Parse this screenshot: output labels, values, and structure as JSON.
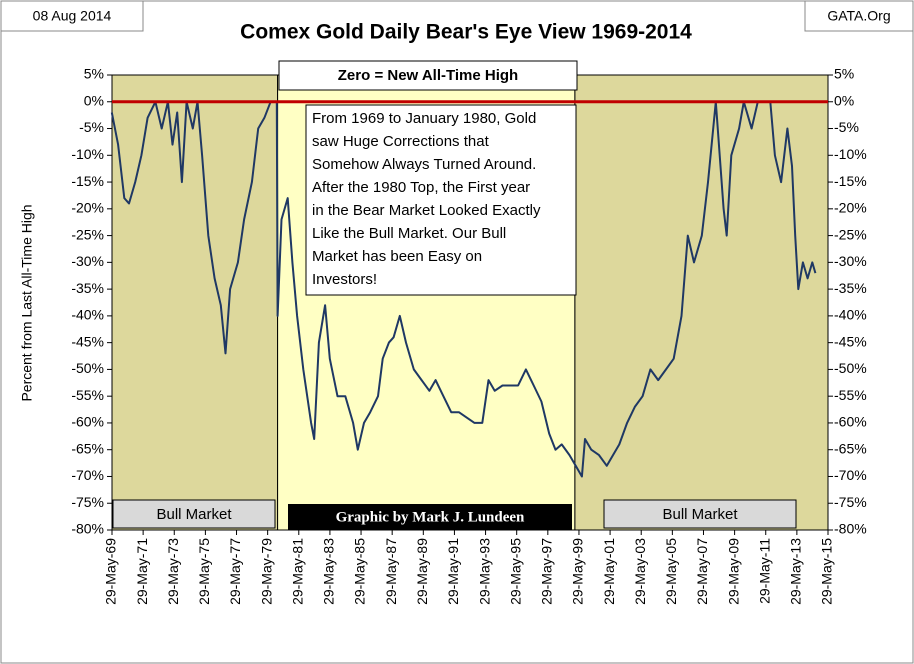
{
  "chart_data": {
    "type": "line",
    "title": "Comex Gold Daily Bear's Eye View 1969-2014",
    "date_label": "08 Aug 2014",
    "source_label": "GATA.Org",
    "ylabel": "Percent  from Last All-Time High",
    "zero_note": "Zero = New All-Time High",
    "credit": "Graphic by Mark J. Lundeen",
    "note_lines": [
      "From 1969 to January 1980, Gold",
      "saw Huge Corrections that",
      "Somehow Always Turned Around.",
      "After the 1980 Top, the First year",
      "in the Bear Market Looked Exactly",
      "Like the Bull Market.  Our Bull",
      "Market has been Easy on",
      "Investors!"
    ],
    "spans": [
      {
        "start": 1969.41,
        "end": 1980.05,
        "color": "#ddd89c",
        "label": "Bull Market"
      },
      {
        "start": 1980.05,
        "end": 1999.15,
        "color": "#ffffc4"
      },
      {
        "start": 1999.15,
        "end": 2015.41,
        "color": "#ddd89c",
        "label": "Bull Market"
      }
    ],
    "reference_line": {
      "value": 0,
      "color": "#c00000"
    },
    "xlim": [
      1969.41,
      2015.41
    ],
    "xticks": [
      {
        "value": 1969.41,
        "label": "29-May-69"
      },
      {
        "value": 1971.41,
        "label": "29-May-71"
      },
      {
        "value": 1973.41,
        "label": "29-May-73"
      },
      {
        "value": 1975.41,
        "label": "29-May-75"
      },
      {
        "value": 1977.41,
        "label": "29-May-77"
      },
      {
        "value": 1979.41,
        "label": "29-May-79"
      },
      {
        "value": 1981.41,
        "label": "29-May-81"
      },
      {
        "value": 1983.41,
        "label": "29-May-83"
      },
      {
        "value": 1985.41,
        "label": "29-May-85"
      },
      {
        "value": 1987.41,
        "label": "29-May-87"
      },
      {
        "value": 1989.41,
        "label": "29-May-89"
      },
      {
        "value": 1991.41,
        "label": "29-May-91"
      },
      {
        "value": 1993.41,
        "label": "29-May-93"
      },
      {
        "value": 1995.41,
        "label": "29-May-95"
      },
      {
        "value": 1997.41,
        "label": "29-May-97"
      },
      {
        "value": 1999.41,
        "label": "29-May-99"
      },
      {
        "value": 2001.41,
        "label": "29-May-01"
      },
      {
        "value": 2003.41,
        "label": "29-May-03"
      },
      {
        "value": 2005.41,
        "label": "29-May-05"
      },
      {
        "value": 2007.41,
        "label": "29-May-07"
      },
      {
        "value": 2009.41,
        "label": "29-May-09"
      },
      {
        "value": 2011.41,
        "label": "29-May-11"
      },
      {
        "value": 2013.41,
        "label": "29-May-13"
      },
      {
        "value": 2015.41,
        "label": "29-May-15"
      }
    ],
    "ylim": [
      -80,
      5
    ],
    "yticks": [
      {
        "value": 5,
        "label": "5%"
      },
      {
        "value": 0,
        "label": "0%"
      },
      {
        "value": -5,
        "label": "-5%"
      },
      {
        "value": -10,
        "label": "-10%"
      },
      {
        "value": -15,
        "label": "-15%"
      },
      {
        "value": -20,
        "label": "-20%"
      },
      {
        "value": -25,
        "label": "-25%"
      },
      {
        "value": -30,
        "label": "-30%"
      },
      {
        "value": -35,
        "label": "-35%"
      },
      {
        "value": -40,
        "label": "-40%"
      },
      {
        "value": -45,
        "label": "-45%"
      },
      {
        "value": -50,
        "label": "-50%"
      },
      {
        "value": -55,
        "label": "-55%"
      },
      {
        "value": -60,
        "label": "-60%"
      },
      {
        "value": -65,
        "label": "-65%"
      },
      {
        "value": -70,
        "label": "-70%"
      },
      {
        "value": -75,
        "label": "-75%"
      },
      {
        "value": -80,
        "label": "-80%"
      }
    ],
    "series": [
      {
        "name": "Bear's Eye View",
        "color": "#1f3864",
        "x": [
          1969.4,
          1969.8,
          1970.2,
          1970.5,
          1970.9,
          1971.3,
          1971.7,
          1972.2,
          1972.6,
          1973.0,
          1973.3,
          1973.6,
          1973.9,
          1974.2,
          1974.6,
          1974.9,
          1975.2,
          1975.6,
          1976.0,
          1976.4,
          1976.7,
          1977.0,
          1977.5,
          1977.9,
          1978.4,
          1978.8,
          1979.2,
          1979.6,
          1980.0,
          1980.05,
          1980.3,
          1980.7,
          1981.0,
          1981.3,
          1981.7,
          1982.2,
          1982.4,
          1982.7,
          1983.1,
          1983.4,
          1983.9,
          1984.4,
          1984.9,
          1985.2,
          1985.6,
          1986.0,
          1986.5,
          1986.8,
          1987.2,
          1987.5,
          1987.9,
          1988.3,
          1988.8,
          1989.3,
          1989.8,
          1990.2,
          1990.7,
          1991.2,
          1991.7,
          1992.2,
          1992.7,
          1993.2,
          1993.6,
          1994.0,
          1994.5,
          1995.0,
          1995.5,
          1996.0,
          1996.5,
          1997.0,
          1997.5,
          1997.9,
          1998.3,
          1998.8,
          1999.2,
          1999.6,
          1999.8,
          2000.2,
          2000.7,
          2001.2,
          2001.6,
          2002.0,
          2002.5,
          2003.0,
          2003.5,
          2004.0,
          2004.5,
          2005.0,
          2005.5,
          2006.0,
          2006.4,
          2006.8,
          2007.3,
          2007.7,
          2008.2,
          2008.7,
          2008.9,
          2009.2,
          2009.7,
          2010.0,
          2010.5,
          2010.9,
          2011.3,
          2011.7,
          2012.0,
          2012.4,
          2012.8,
          2013.1,
          2013.3,
          2013.5,
          2013.8,
          2014.1,
          2014.4,
          2014.6
        ],
        "values": [
          -2,
          -8,
          -18,
          -19,
          -15,
          -10,
          -3,
          0,
          -5,
          0,
          -8,
          -2,
          -15,
          0,
          -5,
          0,
          -10,
          -25,
          -33,
          -38,
          -47,
          -35,
          -30,
          -22,
          -15,
          -5,
          -3,
          0,
          0,
          -40,
          -22,
          -18,
          -30,
          -40,
          -50,
          -60,
          -63,
          -45,
          -38,
          -48,
          -55,
          -55,
          -60,
          -65,
          -60,
          -58,
          -55,
          -48,
          -45,
          -44,
          -40,
          -45,
          -50,
          -52,
          -54,
          -52,
          -55,
          -58,
          -58,
          -59,
          -60,
          -60,
          -52,
          -54,
          -53,
          -53,
          -53,
          -50,
          -53,
          -56,
          -62,
          -65,
          -64,
          -66,
          -68,
          -70,
          -63,
          -65,
          -66,
          -68,
          -66,
          -64,
          -60,
          -57,
          -55,
          -50,
          -52,
          -50,
          -48,
          -40,
          -25,
          -30,
          -25,
          -15,
          0,
          -20,
          -25,
          -10,
          -5,
          0,
          -5,
          0,
          0,
          0,
          -10,
          -15,
          -5,
          -12,
          -25,
          -35,
          -30,
          -33,
          -30,
          -32
        ]
      }
    ]
  }
}
